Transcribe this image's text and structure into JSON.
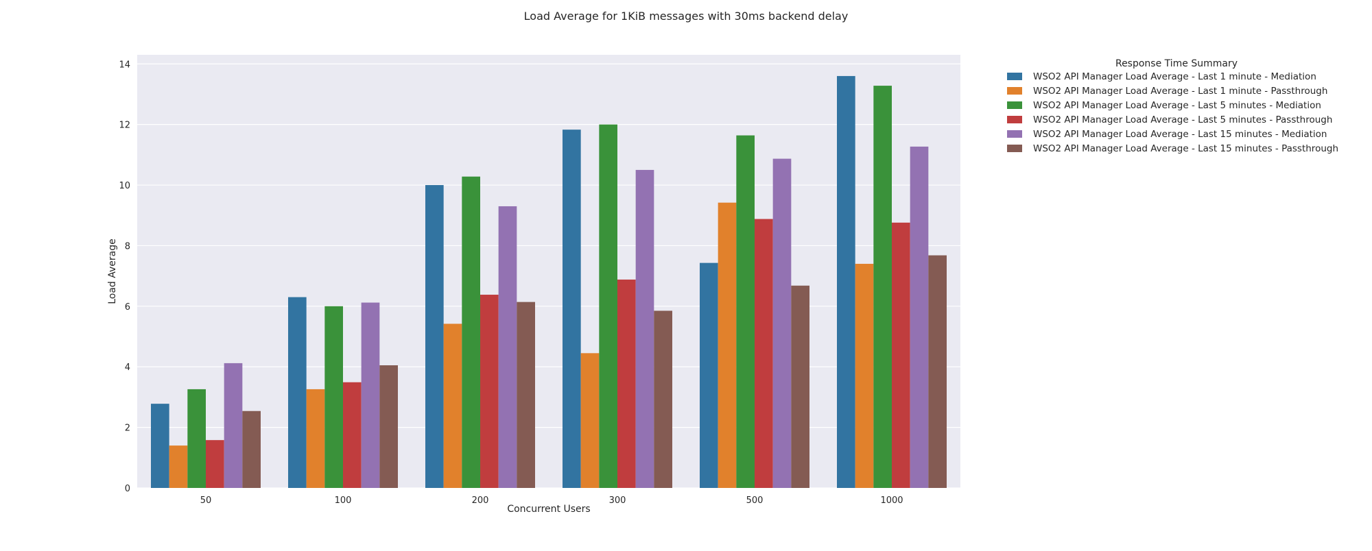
{
  "chart_data": {
    "type": "bar",
    "title": "Load Average for 1KiB messages with 30ms backend delay",
    "xlabel": "Concurrent Users",
    "ylabel": "Load Average",
    "categories": [
      "50",
      "100",
      "200",
      "300",
      "500",
      "1000"
    ],
    "ylim": [
      0,
      14.3
    ],
    "yticks": [
      0,
      2,
      4,
      6,
      8,
      10,
      12,
      14
    ],
    "grid": true,
    "legend_title": "Response Time Summary",
    "legend_position": "outside-right",
    "series": [
      {
        "name": "WSO2 API Manager Load Average - Last 1 minute - Mediation",
        "color": "#3274a1",
        "values": [
          2.78,
          6.3,
          10.0,
          11.83,
          7.43,
          13.6
        ]
      },
      {
        "name": "WSO2 API Manager Load Average - Last 1 minute - Passthrough",
        "color": "#e1812c",
        "values": [
          1.4,
          3.26,
          5.42,
          4.45,
          9.42,
          7.4
        ]
      },
      {
        "name": "WSO2 API Manager Load Average - Last 5 minutes - Mediation",
        "color": "#3a923a",
        "values": [
          3.26,
          6.0,
          10.28,
          12.0,
          11.64,
          13.28
        ]
      },
      {
        "name": "WSO2 API Manager Load Average - Last 5 minutes - Passthrough",
        "color": "#c03d3e",
        "values": [
          1.58,
          3.49,
          6.38,
          6.88,
          8.88,
          8.76
        ]
      },
      {
        "name": "WSO2 API Manager Load Average - Last 15 minutes - Mediation",
        "color": "#9372b2",
        "values": [
          4.12,
          6.12,
          9.3,
          10.5,
          10.87,
          11.27
        ]
      },
      {
        "name": "WSO2 API Manager Load Average - Last 15 minutes - Passthrough",
        "color": "#845b53",
        "values": [
          2.54,
          4.05,
          6.14,
          5.85,
          6.68,
          7.68
        ]
      }
    ]
  }
}
